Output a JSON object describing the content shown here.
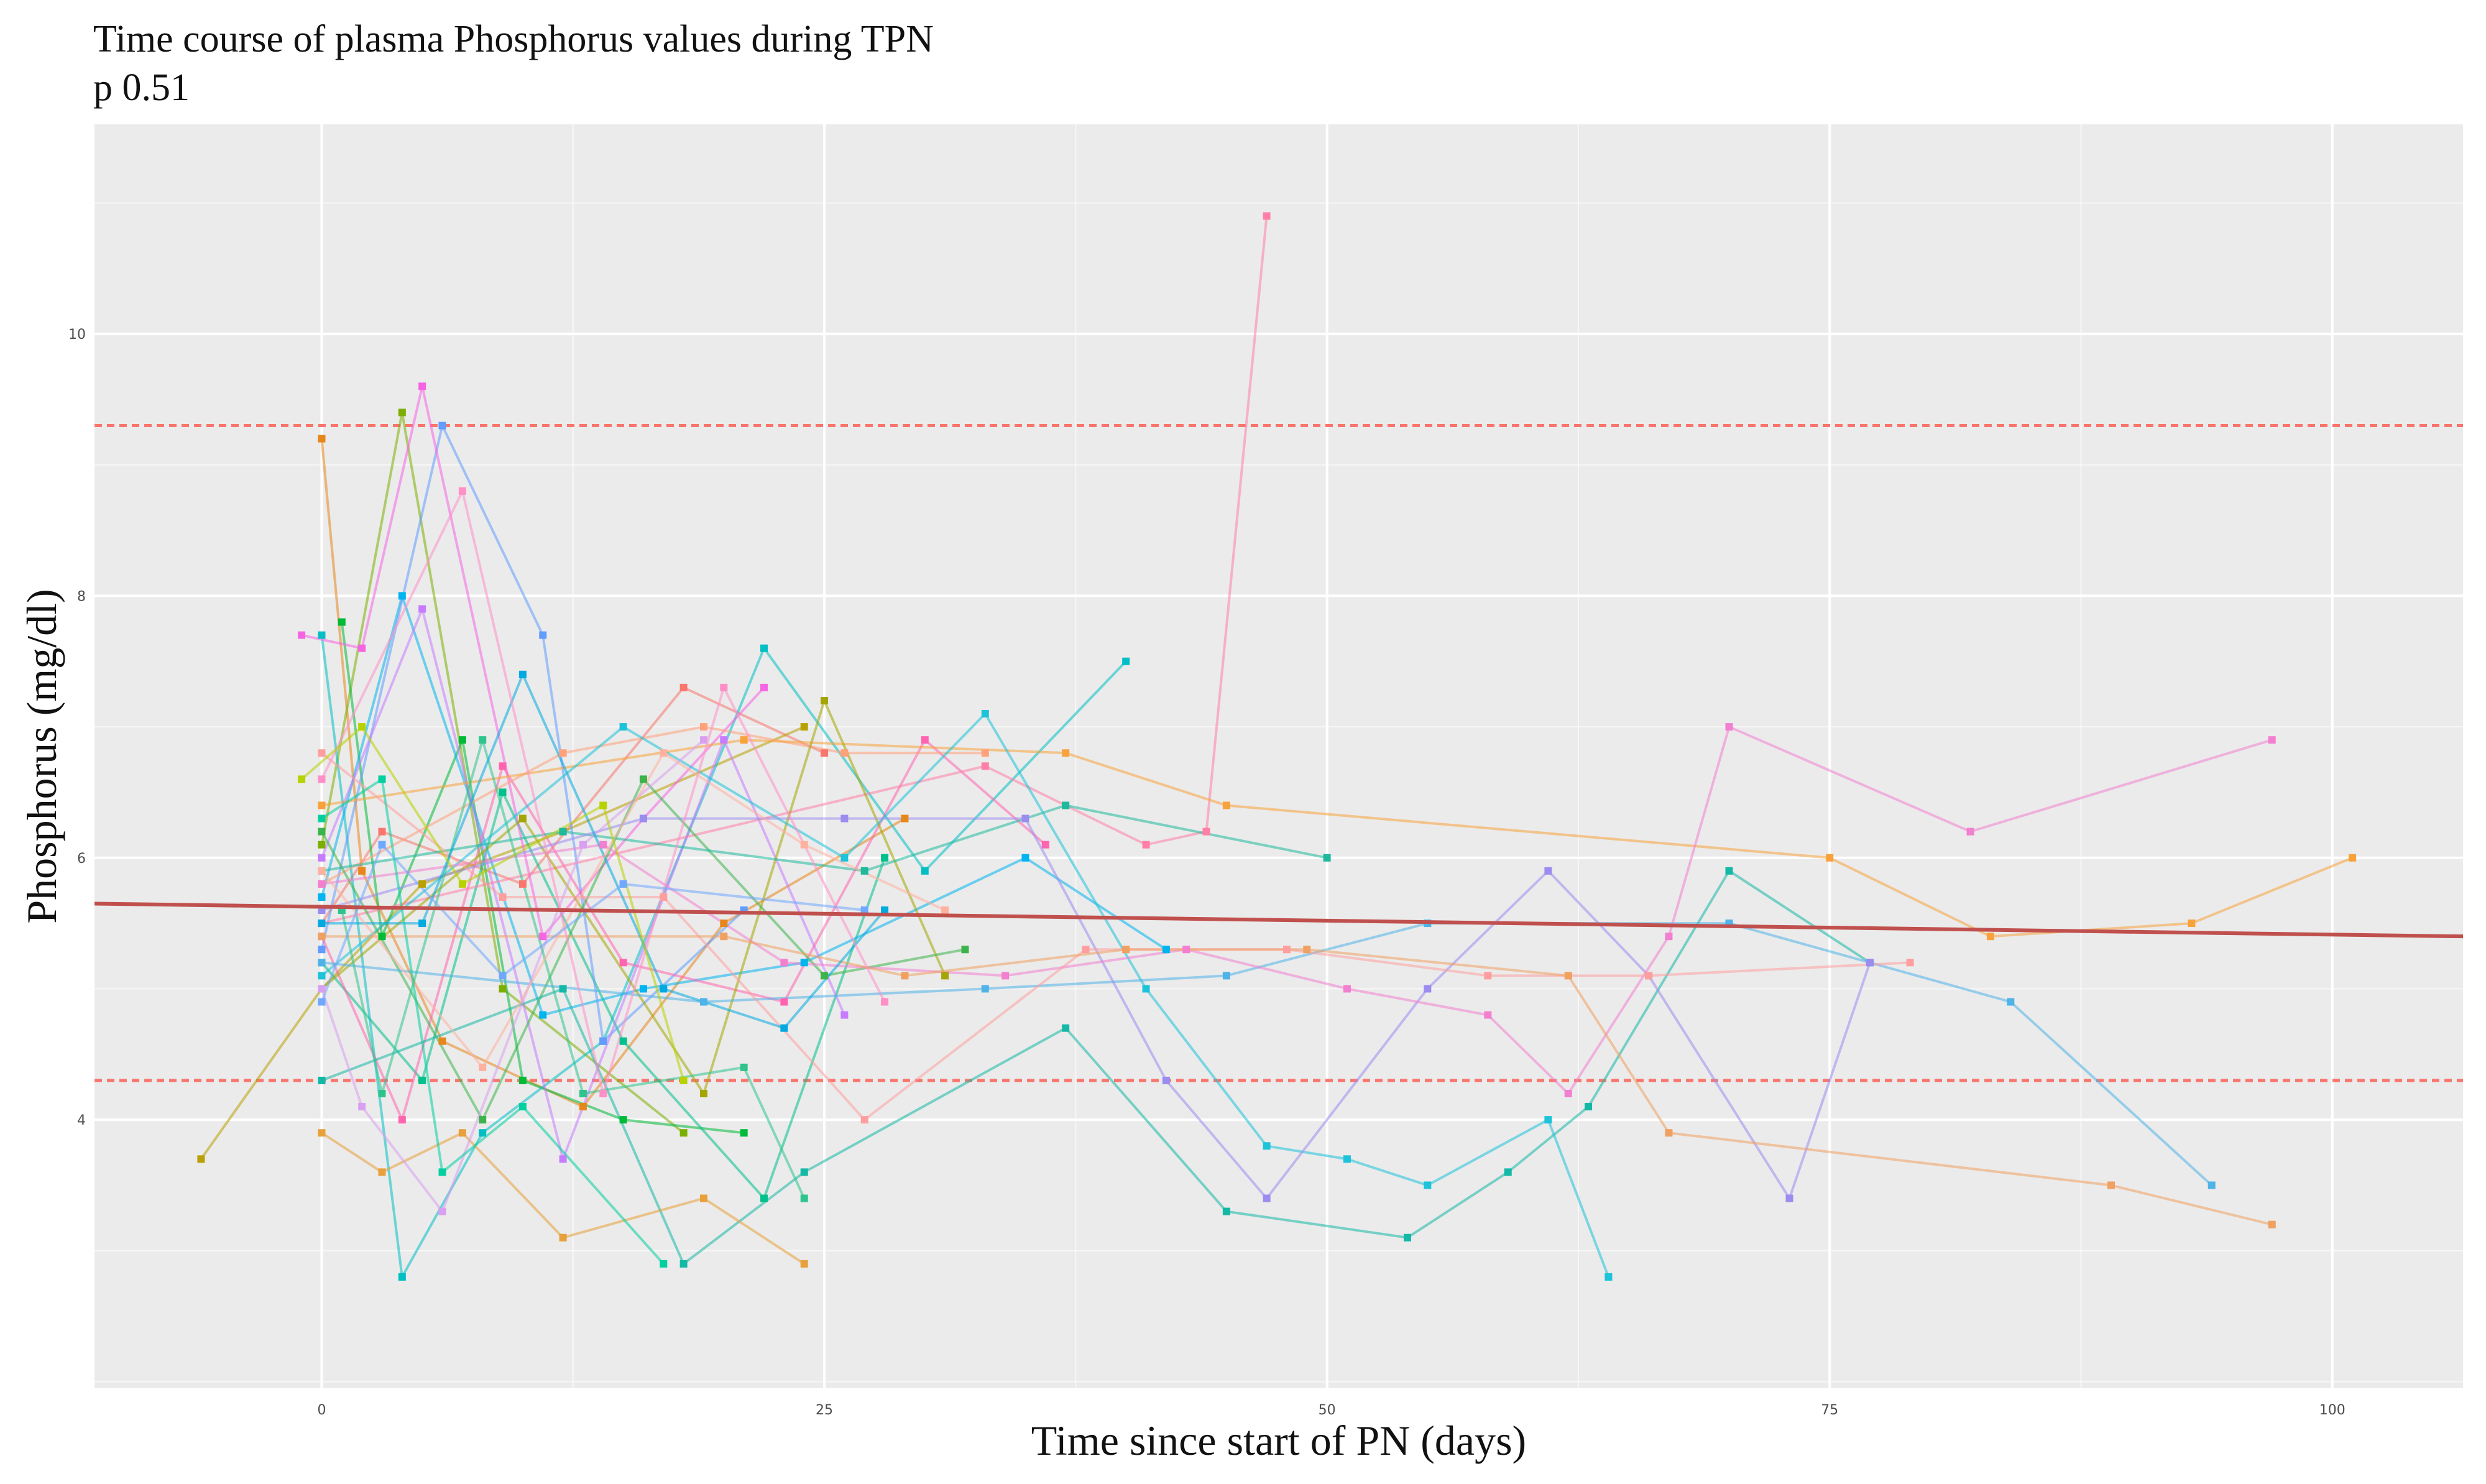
{
  "chart_data": {
    "type": "line",
    "title": "Time course of plasma Phosphorus values during TPN",
    "subtitle": "p 0.51",
    "xlabel": "Time since start of PN (days)",
    "ylabel": "Phosphorus (mg/dl)",
    "xlim": [
      -11.3,
      106.5
    ],
    "ylim": [
      1.95,
      11.6
    ],
    "x_ticks": [
      0,
      25,
      50,
      75,
      100
    ],
    "x_tick_labels": [
      "0",
      "25",
      "50",
      "75",
      "100"
    ],
    "y_ticks": [
      4,
      6,
      8,
      10
    ],
    "y_tick_labels": [
      "4",
      "6",
      "8",
      "10"
    ],
    "grid": true,
    "legend": "none",
    "colors": {
      "panel": "#ebebeb",
      "grid": "#ffffff",
      "reference": "#f8766d",
      "trend": "#c0504d"
    },
    "reference_lines": [
      9.3,
      4.3
    ],
    "trend": {
      "x": [
        -11.3,
        106.5
      ],
      "y": [
        5.65,
        5.4
      ]
    },
    "series": [
      {
        "color": "#f8766d",
        "x": [
          0,
          3,
          10,
          18,
          25
        ],
        "y": [
          5.5,
          6.2,
          5.8,
          7.3,
          6.8
        ]
      },
      {
        "color": "#e7861b",
        "x": [
          0,
          2,
          6,
          13,
          20,
          29
        ],
        "y": [
          9.2,
          5.9,
          4.6,
          4.1,
          5.5,
          6.3
        ]
      },
      {
        "color": "#b8a000",
        "x": [
          -6,
          0,
          5,
          12,
          24
        ],
        "y": [
          3.7,
          5.0,
          5.8,
          6.2,
          7.0
        ]
      },
      {
        "color": "#7cae00",
        "x": [
          0,
          4,
          9,
          18
        ],
        "y": [
          6.1,
          9.4,
          5.0,
          3.9
        ]
      },
      {
        "color": "#00ba38",
        "x": [
          1,
          3,
          7,
          10,
          15,
          21
        ],
        "y": [
          7.8,
          5.4,
          6.9,
          4.3,
          4.0,
          3.9
        ]
      },
      {
        "color": "#00c08b",
        "x": [
          0,
          5,
          9,
          15,
          22,
          28
        ],
        "y": [
          5.2,
          4.3,
          6.5,
          4.6,
          3.4,
          6.0
        ]
      },
      {
        "color": "#00bfc4",
        "x": [
          0,
          4,
          8,
          14,
          22,
          30,
          40
        ],
        "y": [
          7.7,
          2.8,
          3.9,
          4.6,
          7.6,
          5.9,
          7.5
        ]
      },
      {
        "color": "#00b4ef",
        "x": [
          0,
          4,
          11,
          16,
          24,
          35,
          42
        ],
        "y": [
          5.7,
          8.0,
          4.8,
          5.0,
          5.2,
          6.0,
          5.3
        ]
      },
      {
        "color": "#619cff",
        "x": [
          0,
          6,
          11,
          14,
          21
        ],
        "y": [
          5.3,
          9.3,
          7.7,
          4.6,
          5.6
        ]
      },
      {
        "color": "#c77cff",
        "x": [
          0,
          5,
          12,
          20,
          26
        ],
        "y": [
          6.0,
          7.9,
          3.7,
          6.9,
          4.8
        ]
      },
      {
        "color": "#f564e3",
        "x": [
          -1,
          2,
          5,
          11,
          16,
          22
        ],
        "y": [
          7.7,
          7.6,
          9.6,
          5.4,
          6.3,
          7.3
        ]
      },
      {
        "color": "#ff64b0",
        "x": [
          0,
          4,
          9,
          15,
          23,
          30,
          36
        ],
        "y": [
          5.4,
          4.0,
          6.7,
          5.2,
          4.9,
          6.9,
          6.1
        ]
      },
      {
        "color": "#ff7fa6",
        "x": [
          0,
          33,
          41,
          44,
          47
        ],
        "y": [
          5.5,
          6.7,
          6.1,
          6.2,
          10.9
        ]
      },
      {
        "color": "#ffa17a",
        "x": [
          0,
          12,
          19,
          26,
          33
        ],
        "y": [
          5.8,
          6.8,
          7.0,
          6.8,
          6.8
        ]
      },
      {
        "color": "#f8a23b",
        "x": [
          0,
          21,
          37,
          45,
          75,
          83,
          93,
          101
        ],
        "y": [
          6.4,
          6.9,
          6.8,
          6.4,
          6.0,
          5.4,
          5.5,
          6.0
        ]
      },
      {
        "color": "#a3a500",
        "x": [
          0,
          10,
          19,
          25,
          31
        ],
        "y": [
          5.0,
          6.3,
          4.2,
          7.2,
          5.1
        ]
      },
      {
        "color": "#3cb44b",
        "x": [
          0,
          8,
          16,
          25,
          32
        ],
        "y": [
          6.2,
          4.0,
          6.6,
          5.1,
          5.3
        ]
      },
      {
        "color": "#1fb99d",
        "x": [
          0,
          12,
          27,
          37,
          50
        ],
        "y": [
          5.9,
          6.2,
          5.9,
          6.4,
          6.0
        ]
      },
      {
        "color": "#14b8a6",
        "x": [
          0,
          12,
          18,
          24,
          37,
          45,
          54,
          59,
          63,
          70,
          77
        ],
        "y": [
          4.3,
          5.0,
          2.9,
          3.6,
          4.7,
          3.3,
          3.1,
          3.6,
          4.1,
          5.9,
          5.2
        ]
      },
      {
        "color": "#1cc3d9",
        "x": [
          0,
          15,
          26,
          33,
          41,
          47,
          51,
          55,
          61,
          64
        ],
        "y": [
          5.1,
          7.0,
          6.0,
          7.1,
          5.0,
          3.8,
          3.7,
          3.5,
          4.0,
          2.8
        ]
      },
      {
        "color": "#4fb3e8",
        "x": [
          0,
          19,
          33,
          45,
          55,
          70,
          84,
          94
        ],
        "y": [
          5.2,
          4.9,
          5.0,
          5.1,
          5.5,
          5.5,
          4.9,
          3.5
        ]
      },
      {
        "color": "#9b8cf0",
        "x": [
          0,
          16,
          26,
          35,
          42,
          47,
          55,
          61,
          66,
          73,
          77
        ],
        "y": [
          5.6,
          6.3,
          6.3,
          6.3,
          4.3,
          3.4,
          5.0,
          5.9,
          5.1,
          3.4,
          5.2
        ]
      },
      {
        "color": "#f27fcf",
        "x": [
          0,
          14,
          23,
          34,
          43,
          51,
          58,
          62,
          67,
          70,
          82,
          97
        ],
        "y": [
          5.8,
          6.1,
          5.2,
          5.1,
          5.3,
          5.0,
          4.8,
          4.2,
          5.4,
          7.0,
          6.2,
          6.9
        ]
      },
      {
        "color": "#ff9e9e",
        "x": [
          0,
          9,
          17,
          27,
          38,
          48,
          58,
          66,
          79
        ],
        "y": [
          6.8,
          5.7,
          5.7,
          4.0,
          5.3,
          5.3,
          5.1,
          5.1,
          5.2
        ]
      },
      {
        "color": "#f0a060",
        "x": [
          0,
          20,
          29,
          40,
          49,
          62,
          67,
          89,
          97
        ],
        "y": [
          5.4,
          5.4,
          5.1,
          5.3,
          5.3,
          5.1,
          3.9,
          3.5,
          3.2
        ]
      },
      {
        "color": "#e8a13a",
        "x": [
          0,
          3,
          7,
          12,
          19,
          24
        ],
        "y": [
          3.9,
          3.6,
          3.9,
          3.1,
          3.4,
          2.9
        ]
      },
      {
        "color": "#d99ff0",
        "x": [
          0,
          2,
          6,
          13,
          19
        ],
        "y": [
          5.0,
          4.1,
          3.3,
          6.1,
          6.9
        ]
      },
      {
        "color": "#2ec48c",
        "x": [
          1,
          3,
          8,
          13,
          21,
          24
        ],
        "y": [
          5.6,
          4.2,
          6.9,
          4.2,
          4.4,
          3.4
        ]
      },
      {
        "color": "#00a9e0",
        "x": [
          0,
          5,
          10,
          17,
          23,
          28
        ],
        "y": [
          5.5,
          5.5,
          7.4,
          5.0,
          4.7,
          5.6
        ]
      },
      {
        "color": "#ff8fc6",
        "x": [
          0,
          7,
          14,
          20,
          28
        ],
        "y": [
          6.6,
          8.8,
          4.2,
          7.3,
          4.9
        ]
      },
      {
        "color": "#ffb1a0",
        "x": [
          0,
          8,
          17,
          24,
          31
        ],
        "y": [
          5.9,
          4.4,
          6.8,
          6.1,
          5.6
        ]
      },
      {
        "color": "#b7d200",
        "x": [
          -1,
          2,
          7,
          14,
          18
        ],
        "y": [
          6.6,
          7.0,
          5.8,
          6.4,
          4.3
        ]
      },
      {
        "color": "#00d0a0",
        "x": [
          0,
          3,
          6,
          10,
          17
        ],
        "y": [
          6.3,
          6.6,
          3.6,
          4.1,
          2.9
        ]
      },
      {
        "color": "#6fa8ff",
        "x": [
          0,
          3,
          9,
          15,
          27
        ],
        "y": [
          4.9,
          6.1,
          5.1,
          5.8,
          5.6
        ]
      }
    ]
  }
}
